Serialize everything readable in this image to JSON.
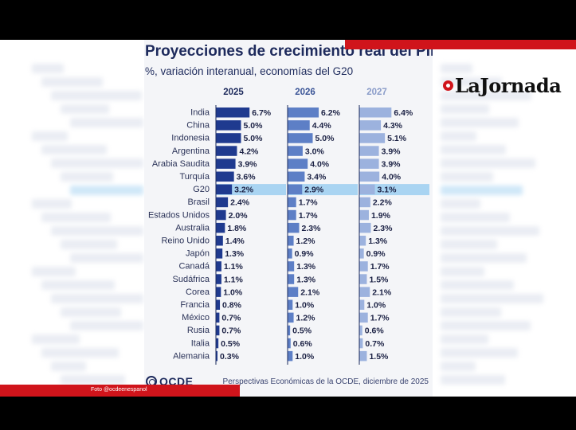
{
  "caption": "Foto @ocdeenespanol",
  "brand": {
    "logo_text": "LaJornada",
    "accent": "#d0141b"
  },
  "source_logo": "OCDE",
  "source_text": "Perspectivas Económicas de la OCDE, diciembre de 2025",
  "chart_data": {
    "type": "bar",
    "title": "Proyecciones de crecimiento real del PIB",
    "subtitle": "%, variación interanual, economías del G20",
    "highlight": "G20",
    "categories": [
      "India",
      "China",
      "Indonesia",
      "Argentina",
      "Arabia Saudita",
      "Turquía",
      "G20",
      "Brasil",
      "Estados Unidos",
      "Australia",
      "Reino Unido",
      "Japón",
      "Canadá",
      "Sudáfrica",
      "Corea",
      "Francia",
      "México",
      "Rusia",
      "Italia",
      "Alemania"
    ],
    "series": [
      {
        "name": "2025",
        "color": "#1f3a8f",
        "values": [
          6.7,
          5.0,
          5.0,
          4.2,
          3.9,
          3.6,
          3.2,
          2.4,
          2.0,
          1.8,
          1.4,
          1.3,
          1.1,
          1.1,
          1.0,
          0.8,
          0.7,
          0.7,
          0.5,
          0.3
        ]
      },
      {
        "name": "2026",
        "color": "#5d7fc6",
        "values": [
          6.2,
          4.4,
          5.0,
          3.0,
          4.0,
          3.4,
          2.9,
          1.7,
          1.7,
          2.3,
          1.2,
          0.9,
          1.3,
          1.3,
          2.1,
          1.0,
          1.2,
          0.5,
          0.6,
          1.0
        ]
      },
      {
        "name": "2027",
        "color": "#9cb2de",
        "values": [
          6.4,
          4.3,
          5.1,
          3.9,
          3.9,
          4.0,
          3.1,
          2.2,
          1.9,
          2.3,
          1.3,
          0.9,
          1.7,
          1.5,
          2.1,
          1.0,
          1.7,
          0.6,
          0.7,
          1.5
        ]
      }
    ],
    "highlight_color": "#a9d4f2",
    "unit": "%"
  }
}
